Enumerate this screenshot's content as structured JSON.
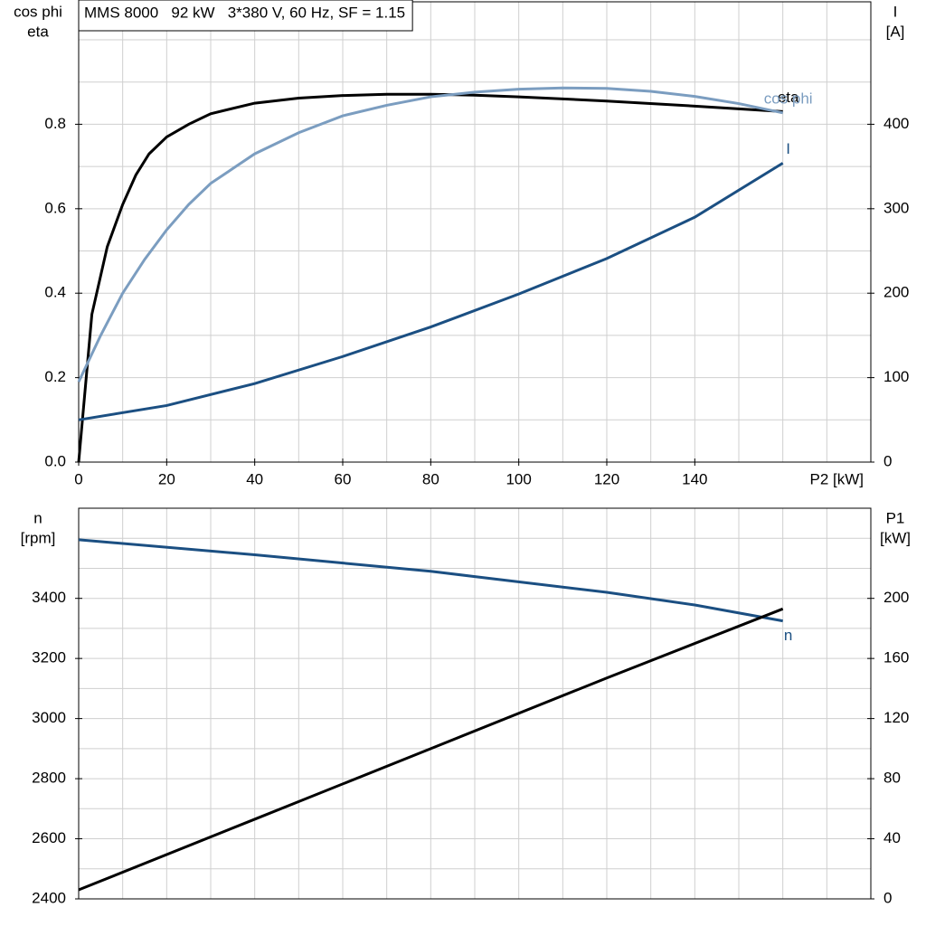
{
  "chart_data": [
    {
      "type": "line",
      "title": "MMS 8000   92 kW   3*380 V, 60 Hz, SF = 1.15",
      "xlabel": "P2 [kW]",
      "ylabel": [
        "cos phi",
        "eta"
      ],
      "y2label": [
        "I",
        "[A]"
      ],
      "xlim": [
        0,
        180
      ],
      "xticks": [
        0,
        20,
        40,
        60,
        80,
        100,
        120,
        140
      ],
      "xgrid": [
        0,
        10,
        20,
        30,
        40,
        50,
        60,
        70,
        80,
        90,
        100,
        110,
        120,
        130,
        140,
        150,
        160,
        170,
        180
      ],
      "ylim": [
        0,
        1.09
      ],
      "yticks": [
        {
          "value": 0,
          "label": "0.0"
        },
        0.2,
        0.4,
        0.6,
        0.8
      ],
      "ygrid": [
        0,
        0.1,
        0.2,
        0.3,
        0.4,
        0.5,
        0.6,
        0.7,
        0.8,
        0.9,
        1
      ],
      "y2lim": [
        0,
        545
      ],
      "y2ticks": [
        0,
        100,
        200,
        300,
        400
      ],
      "grid": true,
      "series": [
        {
          "name": "eta",
          "color": "#000000",
          "x": [
            0,
            3,
            6.5,
            10,
            13,
            16,
            20,
            25,
            30,
            40,
            50,
            60,
            70,
            80,
            90,
            100,
            120,
            140,
            160
          ],
          "values": [
            0,
            0.35,
            0.51,
            0.61,
            0.68,
            0.73,
            0.77,
            0.8,
            0.825,
            0.85,
            0.862,
            0.868,
            0.871,
            0.871,
            0.869,
            0.865,
            0.855,
            0.843,
            0.83
          ]
        },
        {
          "name": "cos phi",
          "color": "#7b9dc0",
          "x": [
            0,
            5,
            10,
            15,
            20,
            25,
            30,
            40,
            50,
            60,
            70,
            80,
            90,
            100,
            110,
            120,
            130,
            140,
            150,
            160
          ],
          "values": [
            0.19,
            0.3,
            0.4,
            0.48,
            0.55,
            0.61,
            0.66,
            0.73,
            0.78,
            0.82,
            0.845,
            0.865,
            0.876,
            0.883,
            0.886,
            0.885,
            0.878,
            0.866,
            0.849,
            0.827
          ]
        },
        {
          "name": "I",
          "color": "#1b4f82",
          "axis": "y2",
          "x": [
            0,
            20,
            40,
            60,
            80,
            100,
            120,
            140,
            160
          ],
          "values": [
            50,
            67,
            93,
            125,
            160,
            199,
            241,
            290,
            354
          ]
        }
      ]
    },
    {
      "type": "line",
      "ylabel": [
        "n",
        "[rpm]"
      ],
      "y2label": [
        "P1",
        "[kW]"
      ],
      "xlim": [
        0,
        180
      ],
      "xgrid": [
        0,
        10,
        20,
        30,
        40,
        50,
        60,
        70,
        80,
        90,
        100,
        110,
        120,
        130,
        140,
        150,
        160,
        170,
        180
      ],
      "ylim": [
        2400,
        3700
      ],
      "yticks": [
        2400,
        2600,
        2800,
        3000,
        3200,
        3400
      ],
      "ygrid": [
        2400,
        2500,
        2600,
        2700,
        2800,
        2900,
        3000,
        3100,
        3200,
        3300,
        3400,
        3500,
        3600,
        3700
      ],
      "y2lim": [
        0,
        260
      ],
      "y2ticks": [
        0,
        40,
        80,
        120,
        160,
        200
      ],
      "grid": true,
      "series": [
        {
          "name": "n",
          "color": "#1b4f82",
          "x": [
            0,
            40,
            80,
            120,
            140,
            160
          ],
          "values": [
            3595,
            3545,
            3490,
            3420,
            3378,
            3325
          ]
        },
        {
          "color": "#000000",
          "axis": "y2",
          "x": [
            0,
            40,
            80,
            120,
            160
          ],
          "values": [
            6,
            53,
            100,
            147,
            193
          ]
        }
      ]
    }
  ]
}
